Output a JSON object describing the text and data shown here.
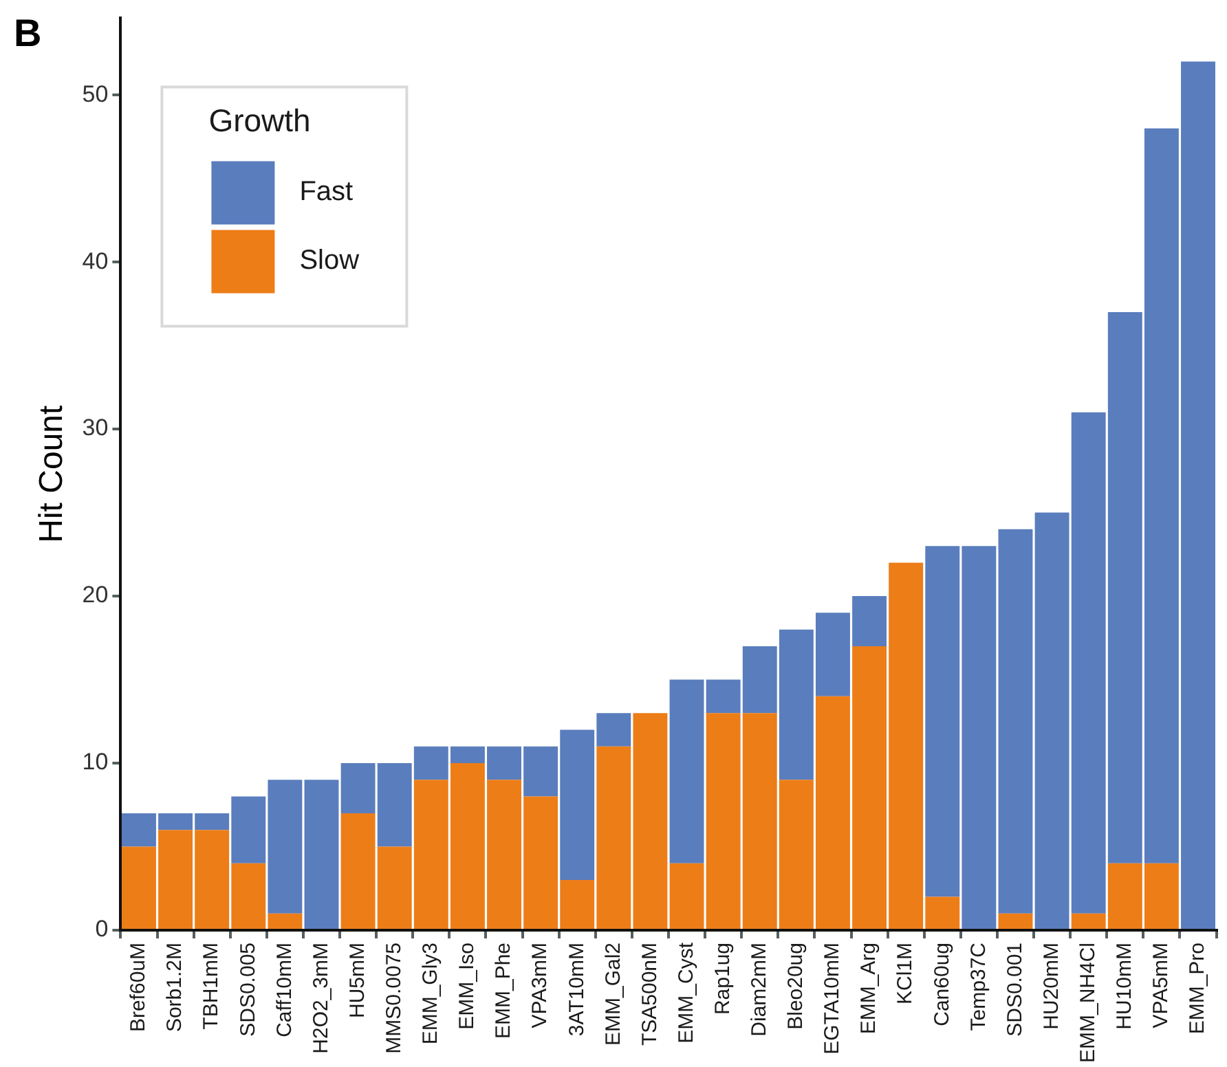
{
  "chart_data": {
    "type": "bar",
    "stacked": true,
    "ylabel": "Hit Count",
    "legend_title": "Growth",
    "legend": "top left",
    "grid": false,
    "annotations": [
      "B"
    ],
    "categories": [
      "Bref60uM",
      "Sorb1.2M",
      "TBH1mM",
      "SDS0.005",
      "Caff10mM",
      "H2O2_3mM",
      "HU5mM",
      "MMS0.0075",
      "EMM_Gly3",
      "EMM_Iso",
      "EMM_Phe",
      "VPA3mM",
      "3AT10mM",
      "EMM_Gal2",
      "TSA500nM",
      "EMM_Cyst",
      "Rap1ug",
      "Diam2mM",
      "Bleo20ug",
      "EGTA10mM",
      "EMM_Arg",
      "KCl1M",
      "Can60ug",
      "Temp37C",
      "SDS0.001",
      "HU20mM",
      "EMM_NH4Cl",
      "HU10mM",
      "VPA5mM",
      "EMM_Pro"
    ],
    "series": [
      {
        "name": "Slow",
        "color": "#ed7d17",
        "values": [
          5,
          6,
          6,
          4,
          1,
          0,
          7,
          5,
          9,
          10,
          9,
          8,
          3,
          11,
          13,
          4,
          13,
          13,
          9,
          14,
          17,
          22,
          2,
          0,
          1,
          0,
          1,
          4,
          4,
          0
        ]
      },
      {
        "name": "Fast",
        "color": "#5a7dbd",
        "values": [
          2,
          1,
          1,
          4,
          8,
          9,
          3,
          5,
          2,
          1,
          2,
          3,
          9,
          2,
          0,
          11,
          2,
          4,
          9,
          5,
          3,
          0,
          21,
          23,
          23,
          25,
          30,
          33,
          44,
          52
        ]
      }
    ],
    "ylim": [
      0,
      54.6
    ],
    "yticks": [
      0,
      10,
      20,
      30,
      40,
      50
    ]
  }
}
